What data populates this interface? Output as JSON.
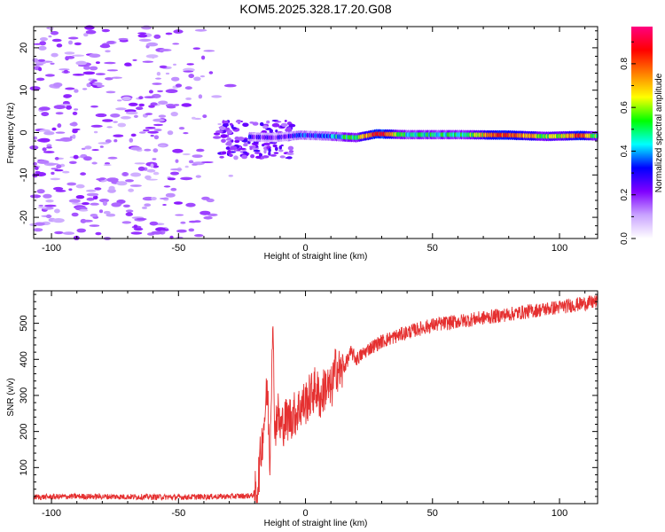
{
  "title": "KOM5.2025.328.17.20.G08",
  "chart_data": [
    {
      "type": "heatmap",
      "xlabel": "Height of straight line (km)",
      "ylabel": "Frequency (Hz)",
      "xlim": [
        -107,
        115
      ],
      "ylim": [
        -25,
        25
      ],
      "xticks": [
        -100,
        -50,
        0,
        50,
        100
      ],
      "yticks": [
        -20,
        -10,
        0,
        10,
        20
      ],
      "xtick_labels": [
        "-100",
        "-50",
        "0",
        "50",
        "100"
      ],
      "ytick_labels": [
        "-20",
        "-10",
        "0",
        "10",
        "20"
      ],
      "grid": false,
      "colorbar": {
        "label": "Normalized spectral amplitude",
        "ticks": [
          0.0,
          0.2,
          0.4,
          0.6,
          0.8
        ],
        "tick_labels": [
          "0.0",
          "0.2",
          "0.4",
          "0.6",
          "0.8"
        ],
        "range": [
          0,
          0.97
        ],
        "colors": [
          "#ffffff",
          "#c9a3ff",
          "#8000ff",
          "#0000ff",
          "#00ffff",
          "#00ff00",
          "#ffff00",
          "#ff8000",
          "#ff0000",
          "#ff0080"
        ]
      },
      "band": [
        {
          "x": -22,
          "f": -1.0,
          "amp": 0.25
        },
        {
          "x": -12,
          "f": -1.2,
          "amp": 0.22
        },
        {
          "x": -2,
          "f": -0.6,
          "amp": 0.3
        },
        {
          "x": 8,
          "f": -0.8,
          "amp": 0.35
        },
        {
          "x": 20,
          "f": -1.2,
          "amp": 0.55
        },
        {
          "x": 28,
          "f": -0.3,
          "amp": 0.9
        },
        {
          "x": 40,
          "f": -0.5,
          "amp": 0.45
        },
        {
          "x": 60,
          "f": -0.5,
          "amp": 0.48
        },
        {
          "x": 80,
          "f": -0.6,
          "amp": 0.85
        },
        {
          "x": 95,
          "f": -0.9,
          "amp": 0.55
        },
        {
          "x": 108,
          "f": -0.7,
          "amp": 0.8
        },
        {
          "x": 115,
          "f": -0.8,
          "amp": 0.5
        }
      ]
    },
    {
      "type": "line",
      "xlabel": "Height of straight line (km)",
      "ylabel": "SNR (v/v)",
      "xlim": [
        -107,
        115
      ],
      "ylim": [
        0,
        590
      ],
      "xticks": [
        -100,
        -50,
        0,
        50,
        100
      ],
      "yticks": [
        100,
        200,
        300,
        400,
        500
      ],
      "xtick_labels": [
        "-100",
        "-50",
        "0",
        "50",
        "100"
      ],
      "ytick_labels": [
        "100",
        "200",
        "300",
        "400",
        "500"
      ],
      "grid": false,
      "series": [
        {
          "name": "SNR",
          "color": "#e53030",
          "x": [
            -107,
            -90,
            -70,
            -50,
            -30,
            -21,
            -19,
            -17,
            -16,
            -15,
            -14,
            -13,
            -12,
            -11,
            -10,
            -8,
            -6,
            -4,
            -2,
            0,
            2,
            4,
            6,
            8,
            10,
            12,
            14,
            16,
            18,
            20,
            25,
            30,
            40,
            50,
            60,
            70,
            80,
            90,
            100,
            110,
            115
          ],
          "y": [
            18,
            20,
            19,
            18,
            20,
            22,
            40,
            180,
            250,
            320,
            120,
            510,
            200,
            260,
            210,
            230,
            240,
            250,
            270,
            280,
            300,
            320,
            290,
            330,
            310,
            380,
            360,
            390,
            420,
            400,
            430,
            450,
            475,
            495,
            505,
            515,
            525,
            535,
            545,
            555,
            560
          ]
        }
      ]
    }
  ]
}
